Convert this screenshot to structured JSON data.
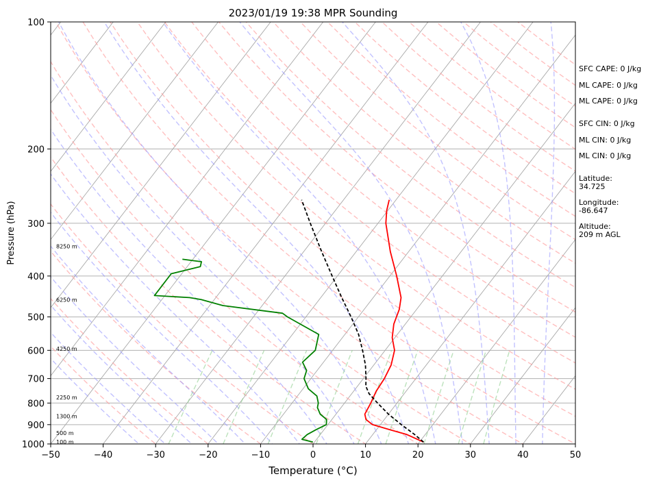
{
  "chart_data": {
    "type": "line",
    "subtype": "skew-t log-p sounding",
    "title": "2023/01/19 19:38 MPR Sounding",
    "xlabel": "Temperature (°C)",
    "ylabel": "Pressure (hPa)",
    "xlim": [
      -50,
      50
    ],
    "ylim": [
      1000,
      100
    ],
    "y_scale": "log",
    "x_ticks": [
      -50,
      -40,
      -30,
      -20,
      -10,
      0,
      10,
      20,
      30,
      40,
      50
    ],
    "x_tick_labels": [
      "−50",
      "−40",
      "−30",
      "−20",
      "−10",
      "0",
      "10",
      "20",
      "30",
      "40",
      "50"
    ],
    "y_ticks": [
      1000,
      900,
      800,
      700,
      600,
      500,
      400,
      300,
      200,
      100
    ],
    "y_tick_labels": [
      "1000",
      "900",
      "800",
      "700",
      "600",
      "500",
      "400",
      "300",
      "200",
      "100"
    ],
    "grid": true,
    "series": [
      {
        "role": "temperature",
        "color": "#ff0000",
        "points": [
          [
            990,
            20.8
          ],
          [
            950,
            16.5
          ],
          [
            925,
            12.5
          ],
          [
            900,
            8.5
          ],
          [
            875,
            6.5
          ],
          [
            850,
            5.5
          ],
          [
            800,
            5.0
          ],
          [
            750,
            4.3
          ],
          [
            700,
            4.0
          ],
          [
            650,
            3.3
          ],
          [
            600,
            1.8
          ],
          [
            560,
            -0.5
          ],
          [
            520,
            -2.2
          ],
          [
            480,
            -3.3
          ],
          [
            450,
            -4.7
          ],
          [
            400,
            -8.7
          ],
          [
            350,
            -13.5
          ],
          [
            300,
            -18.5
          ],
          [
            280,
            -20.2
          ],
          [
            264,
            -21.3
          ]
        ]
      },
      {
        "role": "dewpoint",
        "color": "#008000",
        "points": [
          [
            990,
            -0.3
          ],
          [
            975,
            -2.8
          ],
          [
            950,
            -2.5
          ],
          [
            925,
            -1.5
          ],
          [
            900,
            -0.3
          ],
          [
            875,
            -1.0
          ],
          [
            850,
            -3.0
          ],
          [
            820,
            -4.5
          ],
          [
            800,
            -5.0
          ],
          [
            770,
            -6.3
          ],
          [
            740,
            -9.0
          ],
          [
            700,
            -11.3
          ],
          [
            670,
            -12.0
          ],
          [
            640,
            -14.0
          ],
          [
            600,
            -13.3
          ],
          [
            550,
            -15.0
          ],
          [
            500,
            -23.5
          ],
          [
            490,
            -25.0
          ],
          [
            470,
            -37.5
          ],
          [
            455,
            -42.5
          ],
          [
            450,
            -45.0
          ],
          [
            445,
            -52.0
          ],
          [
            395,
            -52.0
          ],
          [
            380,
            -47.5
          ],
          [
            370,
            -48.0
          ],
          [
            365,
            -52.0
          ]
        ]
      },
      {
        "role": "parcel path",
        "color": "#000000",
        "dashed": true,
        "points": [
          [
            990,
            20.8
          ],
          [
            950,
            18.0
          ],
          [
            900,
            14.0
          ],
          [
            850,
            10.0
          ],
          [
            800,
            6.3
          ],
          [
            760,
            3.3
          ],
          [
            730,
            1.6
          ],
          [
            700,
            0.5
          ],
          [
            650,
            -1.6
          ],
          [
            600,
            -4.3
          ],
          [
            550,
            -7.4
          ],
          [
            500,
            -11.4
          ],
          [
            450,
            -16.0
          ],
          [
            400,
            -21.0
          ],
          [
            350,
            -26.6
          ],
          [
            300,
            -32.9
          ],
          [
            264,
            -38.0
          ]
        ]
      }
    ],
    "background_lines": {
      "isotherms": "gray solid, skewed",
      "dry_adiabats": "red dashed",
      "moist_adiabats": "blue dashed",
      "mixing_ratio_lines": "green dashed"
    },
    "height_labels": [
      {
        "text": "100 m",
        "pressure": 988
      },
      {
        "text": "500 m",
        "pressure": 942
      },
      {
        "text": "1300 m",
        "pressure": 860
      },
      {
        "text": "2250 m",
        "pressure": 775
      },
      {
        "text": "4250 m",
        "pressure": 595
      },
      {
        "text": "6250 m",
        "pressure": 455
      },
      {
        "text": "8250 m",
        "pressure": 340
      }
    ],
    "annotations": [
      "SFC CAPE: 0 J/kg",
      "ML CAPE: 0 J/kg",
      "ML CAPE: 0 J/kg",
      "SFC CIN: 0 J/kg",
      "ML CIN: 0 J/kg",
      "ML CIN: 0 J/kg",
      "Latitude:",
      "34.725",
      "Longitude:",
      "-86.647",
      "Altitude:",
      "209 m AGL"
    ]
  }
}
